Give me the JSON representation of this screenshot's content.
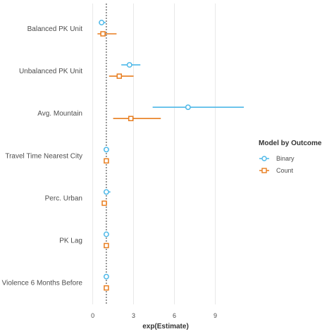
{
  "chart_data": {
    "type": "scatter",
    "xlabel": "exp(Estimate)",
    "x_ticks": [
      0,
      3,
      6,
      9
    ],
    "xlim": [
      -0.6,
      11.2
    ],
    "reference_line": 1,
    "grid": "vertical major lines",
    "categories": [
      "Balanced PK Unit",
      "Unbalanced PK Unit",
      "Avg. Mountain",
      "Travel Time Nearest City",
      "Perc. Urban",
      "PK Lag",
      "Violence 6 Months Before"
    ],
    "legend": {
      "title": "Model by Outcome",
      "position": "right"
    },
    "series": [
      {
        "name": "Binary",
        "color": "#4db8e8",
        "marker": "circle",
        "points": [
          {
            "estimate": 0.65,
            "low": 0.45,
            "high": 0.95
          },
          {
            "estimate": 2.7,
            "low": 2.1,
            "high": 3.5
          },
          {
            "estimate": 7.0,
            "low": 4.4,
            "high": 11.1
          },
          {
            "estimate": 1.0,
            "low": 0.95,
            "high": 1.05
          },
          {
            "estimate": 1.0,
            "low": 0.8,
            "high": 1.3
          },
          {
            "estimate": 1.0,
            "low": 0.95,
            "high": 1.05
          },
          {
            "estimate": 1.0,
            "low": 0.95,
            "high": 1.05
          }
        ]
      },
      {
        "name": "Count",
        "color": "#e87d1e",
        "marker": "square",
        "points": [
          {
            "estimate": 0.75,
            "low": 0.35,
            "high": 1.75
          },
          {
            "estimate": 1.95,
            "low": 1.2,
            "high": 3.0
          },
          {
            "estimate": 2.8,
            "low": 1.5,
            "high": 5.0
          },
          {
            "estimate": 1.0,
            "low": 0.95,
            "high": 1.05
          },
          {
            "estimate": 0.85,
            "low": 0.7,
            "high": 1.05
          },
          {
            "estimate": 1.0,
            "low": 0.95,
            "high": 1.05
          },
          {
            "estimate": 1.0,
            "low": 0.95,
            "high": 1.05
          }
        ]
      }
    ]
  }
}
